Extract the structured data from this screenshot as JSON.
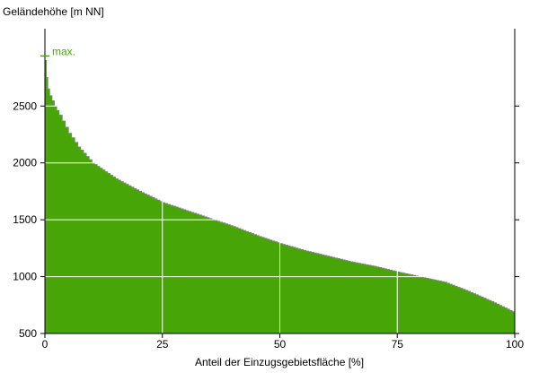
{
  "chart_data": {
    "type": "area",
    "ylabel": "Geländehöhe [m NN]",
    "xlabel": "Anteil der Einzugsgebietsfläche [%]",
    "xlim": [
      0,
      100
    ],
    "ylim": [
      500,
      3180
    ],
    "xticks": [
      0,
      25,
      50,
      75,
      100
    ],
    "yticks": [
      500,
      1000,
      1500,
      2000,
      2500
    ],
    "grid": true,
    "max_label": "max.",
    "max_value": 2940,
    "colors": {
      "fill": "#48a508",
      "edge": "#808080",
      "max": "#48a508",
      "grid": "#ffffff"
    },
    "x": [
      0,
      0.3,
      0.6,
      1,
      2,
      3,
      5,
      7,
      10,
      15,
      20,
      25,
      30,
      35,
      40,
      45,
      50,
      55,
      60,
      65,
      70,
      75,
      80,
      85,
      90,
      95,
      100
    ],
    "y": [
      2900,
      2750,
      2650,
      2590,
      2500,
      2420,
      2260,
      2140,
      2000,
      1860,
      1750,
      1650,
      1580,
      1510,
      1440,
      1360,
      1290,
      1230,
      1180,
      1130,
      1090,
      1040,
      995,
      950,
      870,
      780,
      680
    ]
  }
}
